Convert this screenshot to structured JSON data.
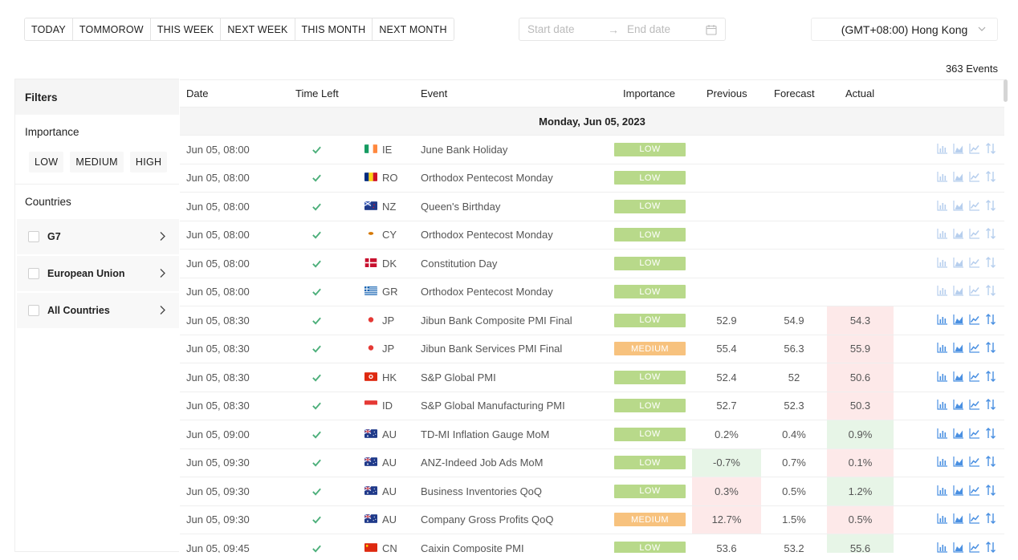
{
  "toolbar": {
    "ranges": [
      "TODAY",
      "TOMMOROW",
      "THIS WEEK",
      "NEXT WEEK",
      "THIS MONTH",
      "NEXT MONTH"
    ],
    "start_placeholder": "Start date",
    "end_placeholder": "End date",
    "timezone": "(GMT+08:00) Hong Kong"
  },
  "events_count": "363 Events",
  "sidebar": {
    "title": "Filters",
    "importance_title": "Importance",
    "importance": [
      "LOW",
      "MEDIUM",
      "HIGH"
    ],
    "countries_title": "Countries",
    "country_groups": [
      "G7",
      "European Union",
      "All Countries"
    ]
  },
  "table": {
    "headers": {
      "date": "Date",
      "time_left": "Time Left",
      "event": "Event",
      "importance": "Importance",
      "previous": "Previous",
      "forecast": "Forecast",
      "actual": "Actual"
    },
    "day": "Monday, Jun 05, 2023",
    "colors": {
      "low": "#b8d98a",
      "medium": "#f7c27e",
      "up_bg": "#e7f5e7",
      "down_bg": "#fde9e9",
      "check": "#4caf7a",
      "tool": "#4a90e2"
    },
    "rows": [
      {
        "date": "Jun 05, 08:00",
        "country": "IE",
        "flag": "ie",
        "event": "June Bank Holiday",
        "importance": "LOW",
        "previous": "",
        "forecast": "",
        "actual": "",
        "actual_state": "",
        "prev_state": "",
        "tools_faded": true
      },
      {
        "date": "Jun 05, 08:00",
        "country": "RO",
        "flag": "ro",
        "event": "Orthodox Pentecost Monday",
        "importance": "LOW",
        "previous": "",
        "forecast": "",
        "actual": "",
        "actual_state": "",
        "prev_state": "",
        "tools_faded": true
      },
      {
        "date": "Jun 05, 08:00",
        "country": "NZ",
        "flag": "nz",
        "event": "Queen's Birthday",
        "importance": "LOW",
        "previous": "",
        "forecast": "",
        "actual": "",
        "actual_state": "",
        "prev_state": "",
        "tools_faded": true
      },
      {
        "date": "Jun 05, 08:00",
        "country": "CY",
        "flag": "cy",
        "event": "Orthodox Pentecost Monday",
        "importance": "LOW",
        "previous": "",
        "forecast": "",
        "actual": "",
        "actual_state": "",
        "prev_state": "",
        "tools_faded": true
      },
      {
        "date": "Jun 05, 08:00",
        "country": "DK",
        "flag": "dk",
        "event": "Constitution Day",
        "importance": "LOW",
        "previous": "",
        "forecast": "",
        "actual": "",
        "actual_state": "",
        "prev_state": "",
        "tools_faded": true
      },
      {
        "date": "Jun 05, 08:00",
        "country": "GR",
        "flag": "gr",
        "event": "Orthodox Pentecost Monday",
        "importance": "LOW",
        "previous": "",
        "forecast": "",
        "actual": "",
        "actual_state": "",
        "prev_state": "",
        "tools_faded": true
      },
      {
        "date": "Jun 05, 08:30",
        "country": "JP",
        "flag": "jp",
        "event": "Jibun Bank Composite PMI Final",
        "importance": "LOW",
        "previous": "52.9",
        "forecast": "54.9",
        "actual": "54.3",
        "actual_state": "down",
        "prev_state": "",
        "tools_faded": false
      },
      {
        "date": "Jun 05, 08:30",
        "country": "JP",
        "flag": "jp",
        "event": "Jibun Bank Services PMI Final",
        "importance": "MEDIUM",
        "previous": "55.4",
        "forecast": "56.3",
        "actual": "55.9",
        "actual_state": "down",
        "prev_state": "",
        "tools_faded": false
      },
      {
        "date": "Jun 05, 08:30",
        "country": "HK",
        "flag": "hk",
        "event": "S&P Global PMI",
        "importance": "LOW",
        "previous": "52.4",
        "forecast": "52",
        "actual": "50.6",
        "actual_state": "down",
        "prev_state": "",
        "tools_faded": false
      },
      {
        "date": "Jun 05, 08:30",
        "country": "ID",
        "flag": "id",
        "event": "S&P Global Manufacturing PMI",
        "importance": "LOW",
        "previous": "52.7",
        "forecast": "52.3",
        "actual": "50.3",
        "actual_state": "down",
        "prev_state": "",
        "tools_faded": false
      },
      {
        "date": "Jun 05, 09:00",
        "country": "AU",
        "flag": "au",
        "event": "TD-MI Inflation Gauge MoM",
        "importance": "LOW",
        "previous": "0.2%",
        "forecast": "0.4%",
        "actual": "0.9%",
        "actual_state": "up",
        "prev_state": "",
        "tools_faded": false
      },
      {
        "date": "Jun 05, 09:30",
        "country": "AU",
        "flag": "au",
        "event": "ANZ-Indeed Job Ads MoM",
        "importance": "LOW",
        "previous": "-0.7%",
        "forecast": "0.7%",
        "actual": "0.1%",
        "actual_state": "down",
        "prev_state": "up",
        "tools_faded": false
      },
      {
        "date": "Jun 05, 09:30",
        "country": "AU",
        "flag": "au",
        "event": "Business Inventories QoQ",
        "importance": "LOW",
        "previous": "0.3%",
        "forecast": "0.5%",
        "actual": "1.2%",
        "actual_state": "up",
        "prev_state": "down",
        "tools_faded": false
      },
      {
        "date": "Jun 05, 09:30",
        "country": "AU",
        "flag": "au",
        "event": "Company Gross Profits QoQ",
        "importance": "MEDIUM",
        "previous": "12.7%",
        "forecast": "1.5%",
        "actual": "0.5%",
        "actual_state": "down",
        "prev_state": "down",
        "tools_faded": false
      },
      {
        "date": "Jun 05, 09:45",
        "country": "CN",
        "flag": "cn",
        "event": "Caixin Composite PMI",
        "importance": "LOW",
        "previous": "53.6",
        "forecast": "53.2",
        "actual": "55.6",
        "actual_state": "up",
        "prev_state": "",
        "tools_faded": false
      }
    ]
  }
}
